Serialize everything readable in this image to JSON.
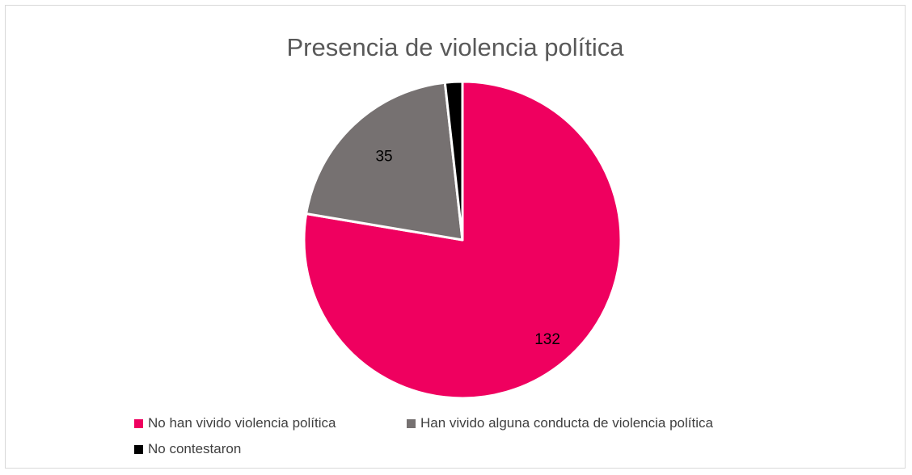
{
  "chart_data": {
    "type": "pie",
    "title": "Presencia de violencia política",
    "slices": [
      {
        "name": "No han vivido violencia política",
        "value": 132,
        "label": "132",
        "color": "#ef005f"
      },
      {
        "name": "Han vivido alguna conducta de violencia política",
        "value": 35,
        "label": "35",
        "color": "#767171"
      },
      {
        "name": "No contestaron",
        "value": 3,
        "label": "",
        "color": "#000000"
      }
    ],
    "legend_position": "bottom"
  }
}
